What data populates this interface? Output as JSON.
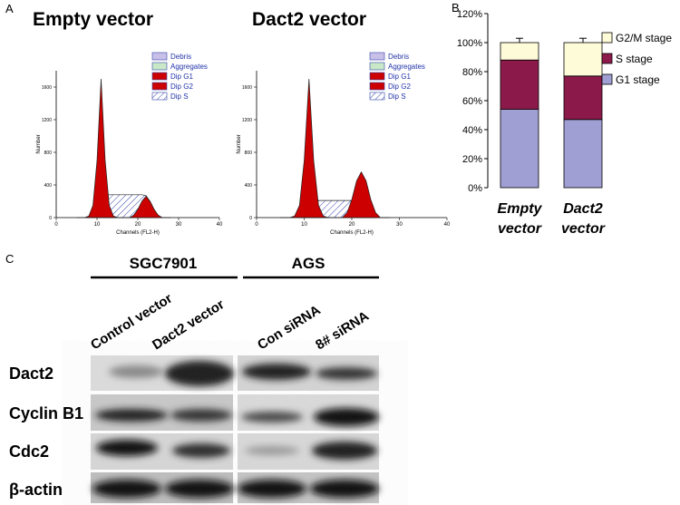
{
  "panel_labels": [
    "A",
    "B",
    "C"
  ],
  "chart_data": [
    {
      "type": "area",
      "title": "Empty vector",
      "xlabel": "Channels (FL2-H)",
      "ylabel": "Number",
      "x": [
        5,
        6,
        7,
        8,
        9,
        10,
        11,
        12,
        13,
        14,
        15,
        16,
        17,
        18,
        19,
        20,
        21,
        22,
        23,
        24,
        25,
        26,
        27,
        28
      ],
      "xlim": [
        0,
        40
      ],
      "xticks": [
        0,
        10,
        20,
        30,
        40
      ],
      "ylim": [
        0,
        1800
      ],
      "yticks": [
        0,
        400,
        800,
        1200,
        1600
      ],
      "series": [
        {
          "name": "Debris",
          "color": "#c8c0e8",
          "values": [
            null,
            null,
            null,
            null,
            null,
            null,
            null,
            null,
            null,
            null,
            null,
            null,
            null,
            null,
            null,
            null,
            null,
            null,
            null,
            null,
            null,
            null,
            null,
            null
          ]
        },
        {
          "name": "Aggregates",
          "color": "#c8e8c8",
          "values": [
            null,
            null,
            null,
            null,
            null,
            null,
            null,
            null,
            null,
            null,
            null,
            null,
            null,
            null,
            null,
            null,
            null,
            null,
            null,
            null,
            null,
            null,
            null,
            null
          ]
        },
        {
          "name": "Dip G1",
          "color": "#cc0000",
          "values": [
            0,
            0,
            0,
            20,
            150,
            700,
            1700,
            700,
            150,
            20,
            0,
            0,
            0,
            0,
            0,
            0,
            0,
            0,
            0,
            0,
            0,
            0,
            0,
            0
          ]
        },
        {
          "name": "Dip G2",
          "color": "#cc0000",
          "values": [
            0,
            0,
            0,
            0,
            0,
            0,
            0,
            0,
            0,
            0,
            0,
            0,
            0,
            0,
            30,
            100,
            200,
            260,
            200,
            100,
            30,
            0,
            0,
            0
          ]
        },
        {
          "name": "Dip S",
          "color": "#3344aa",
          "pattern": "hatch",
          "values": [
            0,
            0,
            0,
            0,
            0,
            0,
            150,
            270,
            280,
            280,
            280,
            280,
            280,
            280,
            280,
            280,
            280,
            270,
            200,
            100,
            20,
            0,
            0,
            0
          ]
        }
      ]
    },
    {
      "type": "area",
      "title": "Dact2 vector",
      "xlabel": "Channels (FL2-H)",
      "ylabel": "Number",
      "x": [
        5,
        6,
        7,
        8,
        9,
        10,
        11,
        12,
        13,
        14,
        15,
        16,
        17,
        18,
        19,
        20,
        21,
        22,
        23,
        24,
        25,
        26,
        27,
        28
      ],
      "xlim": [
        0,
        40
      ],
      "xticks": [
        0,
        10,
        20,
        30,
        40
      ],
      "ylim": [
        0,
        1800
      ],
      "yticks": [
        0,
        400,
        800,
        1200,
        1600
      ],
      "series": [
        {
          "name": "Debris",
          "color": "#c8c0e8",
          "values": [
            null,
            null,
            null,
            null,
            null,
            null,
            null,
            null,
            null,
            null,
            null,
            null,
            null,
            null,
            null,
            null,
            null,
            null,
            null,
            null,
            null,
            null,
            null,
            null
          ]
        },
        {
          "name": "Aggregates",
          "color": "#c8e8c8",
          "values": [
            null,
            null,
            null,
            null,
            null,
            null,
            null,
            null,
            null,
            null,
            null,
            null,
            null,
            null,
            null,
            null,
            null,
            null,
            null,
            null,
            null,
            null,
            null,
            null
          ]
        },
        {
          "name": "Dip G1",
          "color": "#cc0000",
          "values": [
            0,
            0,
            0,
            20,
            150,
            700,
            1700,
            700,
            150,
            20,
            0,
            0,
            0,
            0,
            0,
            0,
            0,
            0,
            0,
            0,
            0,
            0,
            0,
            0
          ]
        },
        {
          "name": "Dip G2",
          "color": "#cc0000",
          "values": [
            0,
            0,
            0,
            0,
            0,
            0,
            0,
            0,
            0,
            0,
            0,
            0,
            0,
            0,
            60,
            220,
            450,
            560,
            450,
            220,
            60,
            0,
            0,
            0
          ]
        },
        {
          "name": "Dip S",
          "color": "#3344aa",
          "pattern": "hatch",
          "values": [
            0,
            0,
            0,
            0,
            0,
            0,
            120,
            200,
            210,
            210,
            210,
            210,
            210,
            210,
            210,
            210,
            200,
            180,
            120,
            60,
            10,
            0,
            0,
            0
          ]
        }
      ]
    },
    {
      "type": "stacked-bar",
      "categories": [
        "Empty vector",
        "Dact2 vector"
      ],
      "ylim": [
        0,
        120
      ],
      "yticks": [
        {
          "value": 0,
          "label": "0%"
        },
        {
          "value": 20,
          "label": "20%"
        },
        {
          "value": 40,
          "label": "40%"
        },
        {
          "value": 60,
          "label": "60%"
        },
        {
          "value": 80,
          "label": "80%"
        },
        {
          "value": 100,
          "label": "100%"
        },
        {
          "value": 120,
          "label": "120%"
        }
      ],
      "series": [
        {
          "name": "G1 stage",
          "color": "#a09fd3",
          "values": [
            54,
            47
          ],
          "errors": [
            2,
            4
          ]
        },
        {
          "name": "S stage",
          "color": "#8b1a4a",
          "values": [
            34,
            30
          ],
          "errors": [
            6,
            2
          ]
        },
        {
          "name": "G2/M stage",
          "color": "#fdfbd8",
          "values": [
            12,
            23
          ],
          "errors": [
            3,
            3
          ]
        }
      ]
    }
  ],
  "blot": {
    "groups": [
      {
        "name": "SGC7901",
        "lanes": [
          "Control vector",
          "Dact2 vector"
        ]
      },
      {
        "name": "AGS",
        "lanes": [
          "Con siRNA",
          "8# siRNA"
        ]
      }
    ],
    "rows": [
      "Dact2",
      "Cyclin B1",
      "Cdc2",
      "β-actin"
    ]
  }
}
